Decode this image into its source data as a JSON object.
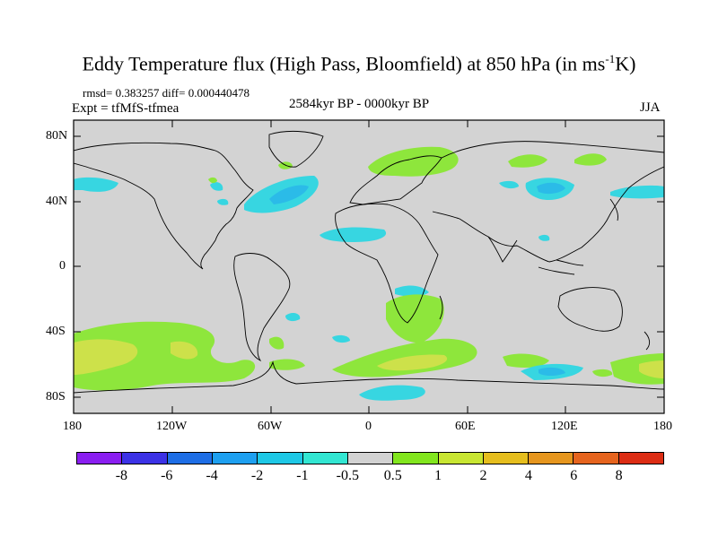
{
  "title": "Eddy Temperature flux (High Pass, Bloomfield) at 850 hPa (in ms",
  "title_sup": "-1",
  "title_end": "K)",
  "stats": "rmsd= 0.383257 diff= 0.000440478",
  "expt": "Expt = tfMfS-tfmea",
  "period": "2584kyr BP - 0000kyr BP",
  "season": "JJA",
  "lat_labels": [
    "80N",
    "40N",
    "0",
    "40S",
    "80S"
  ],
  "lon_labels": [
    "180",
    "120W",
    "60W",
    "0",
    "60E",
    "120E",
    "180"
  ],
  "colorbar": {
    "labels": [
      "-8",
      "-6",
      "-4",
      "-2",
      "-1",
      "-0.5",
      "0.5",
      "1",
      "2",
      "4",
      "6",
      "8"
    ],
    "colors": [
      "#8a1ef0",
      "#3c32e6",
      "#1e6ee6",
      "#1ea0f0",
      "#1ec8e6",
      "#32e6d2",
      "#d2d2d2",
      "#82e61e",
      "#c8e632",
      "#e6be1e",
      "#e6961e",
      "#e6641e",
      "#dc2d14"
    ]
  },
  "map_colors": {
    "neutral": "#d3d3d3",
    "pos1": "#8ee63c",
    "pos2": "#cde14a",
    "neg05": "#37d6e1",
    "neg1": "#2bbbe8"
  }
}
